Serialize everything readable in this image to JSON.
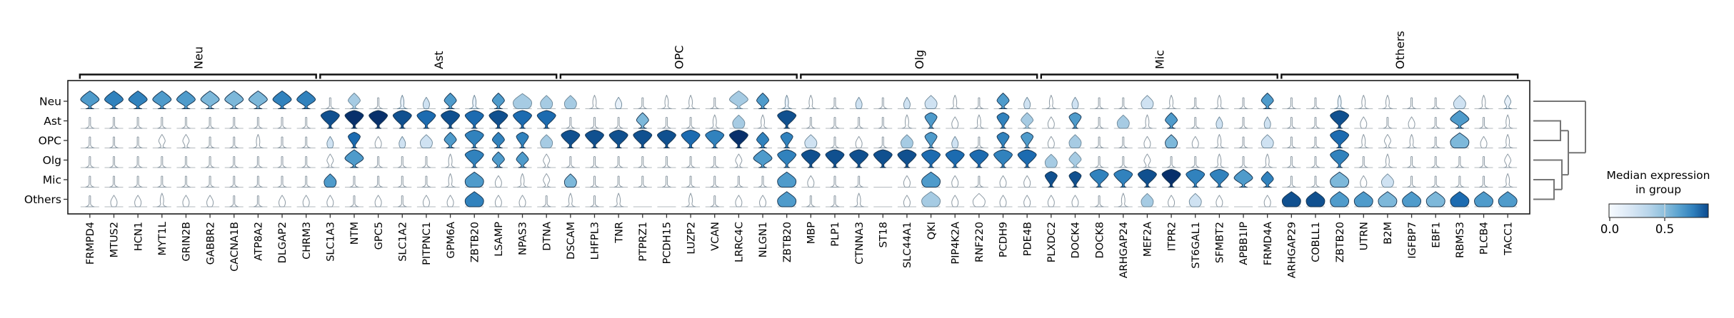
{
  "chart_data": {
    "type": "stacked_violin",
    "title": "",
    "rows": [
      "Neu",
      "Ast",
      "OPC",
      "Olg",
      "Mic",
      "Others"
    ],
    "groups": [
      {
        "label": "Neu",
        "genes": [
          "FRMPD4",
          "MTUS2",
          "HCN1",
          "MYT1L",
          "GRIN2B",
          "GABBR2",
          "CACNA1B",
          "ATP8A2",
          "DLGAP2",
          "CHRM3"
        ]
      },
      {
        "label": "Ast",
        "genes": [
          "SLC1A3",
          "NTM",
          "GPC5",
          "SLC1A2",
          "PITPNC1",
          "GPM6A",
          "ZBTB20",
          "LSAMP",
          "NPAS3",
          "DTNA"
        ]
      },
      {
        "label": "OPC",
        "genes": [
          "DSCAM",
          "LHFPL3",
          "TNR",
          "PTPRZ1",
          "PCDH15",
          "LUZP2",
          "VCAN",
          "LRRC4C",
          "NLGN1",
          "ZBTB20"
        ]
      },
      {
        "label": "Olg",
        "genes": [
          "MBP",
          "PLP1",
          "CTNNA3",
          "ST18",
          "SLC44A1",
          "QKI",
          "PIP4K2A",
          "RNF220",
          "PCDH9",
          "PDE4B"
        ]
      },
      {
        "label": "Mic",
        "genes": [
          "PLXDC2",
          "DOCK4",
          "DOCK8",
          "ARHGAP24",
          "MEF2A",
          "ITPR2",
          "ST6GAL1",
          "SFMBT2",
          "APBB1IP",
          "FRMD4A"
        ]
      },
      {
        "label": "Others",
        "genes": [
          "ARHGAP29",
          "COBLL1",
          "ZBTB20",
          "UTRN",
          "B2M",
          "IGFBP7",
          "EBF1",
          "RBMS3",
          "PLCB4",
          "TACC1"
        ]
      }
    ],
    "legend": {
      "title_line1": "Median expression",
      "title_line2": "in group",
      "ticks": [
        "0.0",
        "0.5"
      ]
    },
    "palette": [
      "#ffffff",
      "#e8f1fa",
      "#cfe2f2",
      "#a6cbe3",
      "#7db8da",
      "#4f9bcb",
      "#3182bd",
      "#1c6bb0",
      "#10508f",
      "#08306b"
    ],
    "colors": {
      "violin_outline_light": "#8d9aa4",
      "violin_outline_dark": "#17344f",
      "baseline": "#b3b9bd",
      "dendrogram": "#757575",
      "frame": "#1a1a1a",
      "colorbar_left": "#f7fbff",
      "colorbar_right": "#0b4a8f"
    },
    "cell_encoding": "size(0 tiny,1 small,2 medium,3 large) : colorIndex(palette 0..9) : shape(t line, s spike, d diamond violin, v top-heavy violin, b bell violin, f flat)",
    "cells": [
      [
        "3:5:d",
        "3:6:d",
        "3:6:d",
        "3:5:d",
        "3:5:d",
        "3:4:d",
        "3:4:d",
        "3:4:d",
        "3:6:d",
        "3:6:d",
        "0:0:t",
        "2:3:d",
        "0:0:t",
        "1:1:s",
        "1:2:b",
        "2:5:d",
        "1:1:s",
        "2:5:d",
        "3:3:b",
        "2:3:b",
        "2:3:b",
        "1:0:s",
        "1:1:b",
        "0:0:t",
        "1:0:s",
        "1:0:s",
        "0:0:t",
        "3:3:d",
        "2:5:d",
        "1:1:s",
        "1:0:s",
        "0:0:t",
        "1:2:b",
        "0:0:t",
        "1:2:b",
        "2:2:b",
        "1:0:s",
        "0:0:t",
        "2:5:d",
        "1:2:b",
        "1:0:s",
        "1:2:b",
        "0:0:t",
        "0:0:t",
        "2:2:b",
        "1:0:s",
        "0:0:t",
        "1:0:s",
        "0:0:t",
        "2:5:d",
        "0:0:t",
        "0:0:t",
        "1:1:s",
        "1:0:s",
        "1:0:s",
        "0:0:t",
        "0:0:t",
        "2:2:b",
        "1:0:s",
        "1:1:d"
      ],
      [
        "0:0:t",
        "0:0:t",
        "0:0:t",
        "0:0:t",
        "0:0:t",
        "0:0:t",
        "0:0:t",
        "0:0:t",
        "0:0:t",
        "0:0:t",
        "3:8:v",
        "3:9:v",
        "3:9:v",
        "3:8:v",
        "3:7:v",
        "3:8:v",
        "3:7:v",
        "3:8:v",
        "3:7:v",
        "3:7:v",
        "0:0:t",
        "0:0:t",
        "0:0:t",
        "2:4:d",
        "0:0:t",
        "0:0:t",
        "1:0:s",
        "2:3:b",
        "1:0:s",
        "3:8:v",
        "0:0:t",
        "0:0:t",
        "0:0:t",
        "0:0:t",
        "1:0:s",
        "2:5:v",
        "1:0:b",
        "1:0:s",
        "2:6:v",
        "2:3:d",
        "1:0:b",
        "2:5:v",
        "0:0:t",
        "2:3:b",
        "1:0:s",
        "2:5:d",
        "0:0:t",
        "1:2:b",
        "0:0:t",
        "1:2:b",
        "0:0:t",
        "0:0:t",
        "3:8:v",
        "1:0:b",
        "0:0:t",
        "1:0:b",
        "0:0:t",
        "3:5:d",
        "0:0:t",
        "1:0:s"
      ],
      [
        "0:0:t",
        "0:0:t",
        "0:0:t",
        "1:0:d",
        "1:0:d",
        "0:0:t",
        "0:0:t",
        "1:0:s",
        "0:0:t",
        "0:0:t",
        "1:2:b",
        "2:7:v",
        "1:0:b",
        "1:2:b",
        "2:2:b",
        "2:5:d",
        "3:6:v",
        "2:6:d",
        "2:6:v",
        "2:3:b",
        "3:8:v",
        "3:8:v",
        "3:8:v",
        "3:8:v",
        "3:8:v",
        "3:7:v",
        "3:6:v",
        "3:9:v",
        "2:6:d",
        "2:6:v",
        "2:2:b",
        "0:0:t",
        "1:0:b",
        "0:0:t",
        "2:3:b",
        "2:5:v",
        "1:2:b",
        "0:0:t",
        "2:6:v",
        "2:5:v",
        "1:0:b",
        "2:3:b",
        "0:0:t",
        "0:0:t",
        "1:0:b",
        "2:4:b",
        "1:0:b",
        "1:0:s",
        "0:0:t",
        "2:2:b",
        "0:0:t",
        "0:0:t",
        "3:7:v",
        "1:0:s",
        "1:0:d",
        "1:0:s",
        "0:0:t",
        "3:4:b",
        "1:0:b",
        "1:0:s"
      ],
      [
        "0:0:t",
        "0:0:t",
        "0:0:t",
        "0:0:t",
        "0:0:t",
        "0:0:t",
        "0:0:t",
        "0:0:t",
        "0:0:t",
        "0:0:t",
        "1:0:d",
        "3:5:d",
        "0:0:t",
        "0:0:t",
        "0:0:t",
        "1:0:s",
        "3:6:v",
        "2:5:d",
        "2:5:d",
        "1:0:d",
        "0:0:t",
        "0:0:t",
        "0:0:t",
        "0:0:t",
        "0:0:t",
        "0:0:t",
        "0:0:t",
        "1:0:d",
        "3:5:d",
        "3:6:v",
        "3:8:v",
        "3:8:v",
        "3:8:v",
        "3:8:v",
        "3:8:v",
        "3:7:v",
        "3:7:v",
        "3:7:v",
        "3:6:v",
        "3:7:v",
        "2:3:b",
        "2:3:d",
        "0:0:t",
        "0:0:t",
        "1:0:d",
        "0:0:t",
        "0:0:t",
        "1:0:s",
        "0:0:t",
        "1:0:s",
        "0:0:t",
        "0:0:t",
        "3:6:v",
        "0:0:t",
        "1:0:s",
        "0:0:t",
        "0:0:t",
        "0:0:t",
        "0:0:t",
        "1:0:d"
      ],
      [
        "0:0:t",
        "0:0:t",
        "0:0:t",
        "0:0:t",
        "0:0:t",
        "0:0:t",
        "0:0:t",
        "0:0:t",
        "0:0:t",
        "0:0:t",
        "2:5:b",
        "0:0:t",
        "0:0:t",
        "0:0:t",
        "0:0:t",
        "1:0:s",
        "3:5:b",
        "1:0:b",
        "1:0:s",
        "1:0:d",
        "2:4:b",
        "0:0:t",
        "0:0:t",
        "0:0:t",
        "0:0:t",
        "0:0:t",
        "0:0:t",
        "0:0:t",
        "0:0:t",
        "3:5:b",
        "1:0:b",
        "0:0:t",
        "0:0:t",
        "0:0:f",
        "1:0:b",
        "3:5:b",
        "1:0:b",
        "0:0:t",
        "1:0:b",
        "1:0:b",
        "2:8:v",
        "2:8:v",
        "3:6:v",
        "3:6:v",
        "3:8:v",
        "3:9:v",
        "3:6:v",
        "3:6:v",
        "3:5:d",
        "2:6:d",
        "0:0:t",
        "0:0:t",
        "3:4:b",
        "1:0:b",
        "2:2:b",
        "0:0:t",
        "0:0:t",
        "0:0:t",
        "0:0:t",
        "1:0:s"
      ],
      [
        "0:0:t",
        "1:0:b",
        "1:0:b",
        "1:0:s",
        "1:0:b",
        "1:0:b",
        "0:0:t",
        "0:0:t",
        "1:0:b",
        "1:0:b",
        "1:0:b",
        "0:0:t",
        "1:0:b",
        "0:0:t",
        "1:0:b",
        "1:0:b",
        "3:6:b",
        "1:0:b",
        "1:0:b",
        "0:0:t",
        "1:0:s",
        "0:0:t",
        "1:0:s",
        "0:0:f",
        "0:0:f",
        "1:0:s",
        "0:0:t",
        "1:0:b",
        "1:0:b",
        "3:5:b",
        "0:0:t",
        "0:0:t",
        "1:0:s",
        "0:0:f",
        "1:0:b",
        "3:3:b",
        "1:0:b",
        "2:0:b",
        "1:0:b",
        "1:0:b",
        "1:0:b",
        "1:0:b",
        "0:0:t",
        "1:0:s",
        "2:3:b",
        "1:0:b",
        "2:2:b",
        "1:0:b",
        "0:0:f",
        "1:0:b",
        "3:8:b",
        "3:8:b",
        "3:5:b",
        "3:5:b",
        "3:4:b",
        "3:5:b",
        "3:4:b",
        "3:7:b",
        "3:5:b",
        "3:5:b"
      ]
    ],
    "dendrogram": {
      "orientation": "right",
      "topology": "(Neu,((Ast,OPC),(Olg,(Mic,Others))))"
    }
  }
}
